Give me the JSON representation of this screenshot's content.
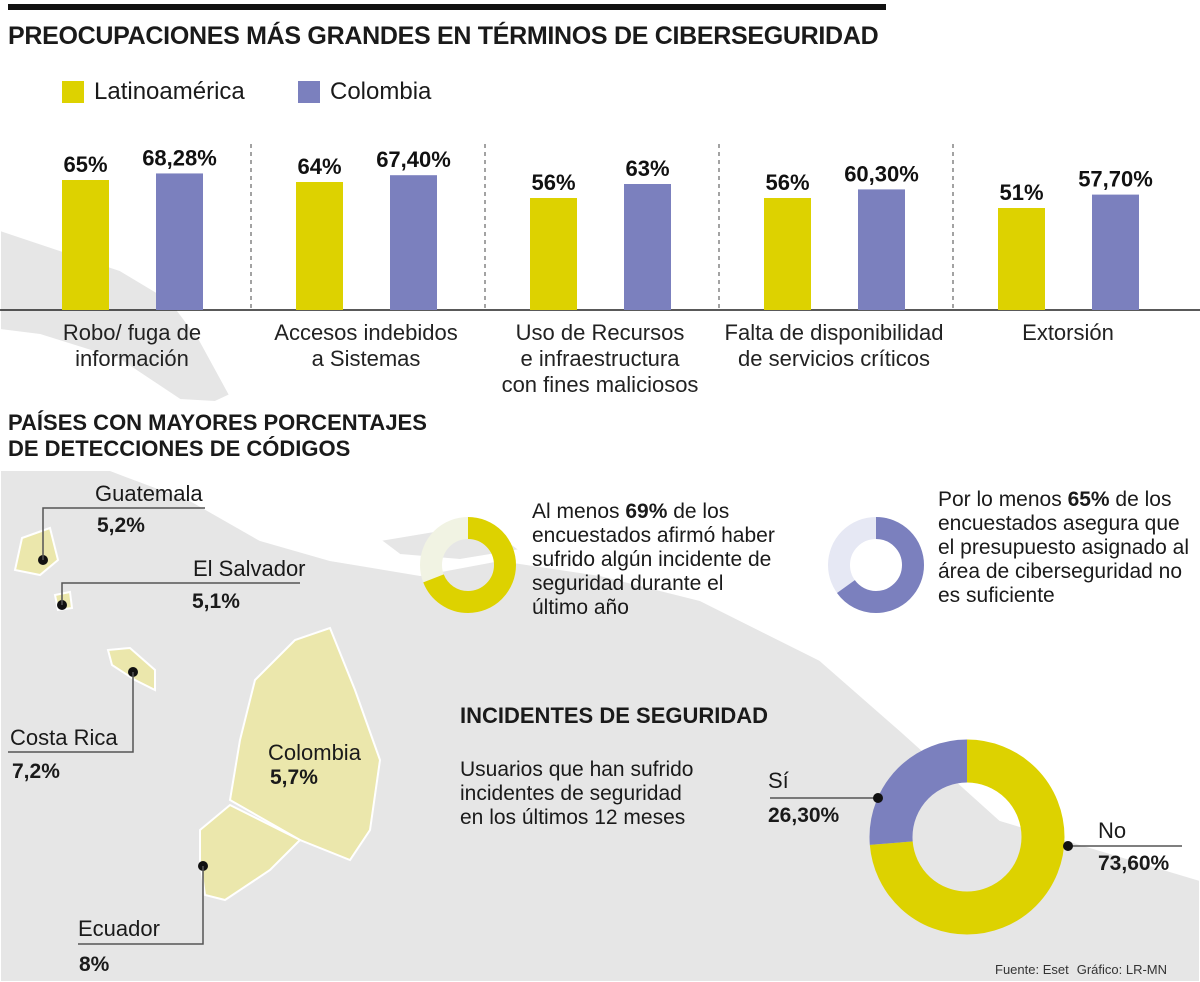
{
  "title": "PREOCUPACIONES MÁS GRANDES EN TÉRMINOS DE CIBERSEGURIDAD",
  "colors": {
    "latam": "#DDD200",
    "colombia": "#7B80BE",
    "country_fill": "#EBE7AC",
    "land": "#E6E6E6"
  },
  "chart_data": [
    {
      "type": "bar",
      "title": "PREOCUPACIONES MÁS GRANDES EN TÉRMINOS DE CIBERSEGURIDAD",
      "legend": "top-left",
      "categories": [
        [
          "Robo/ fuga de",
          "información"
        ],
        [
          "Accesos indebidos",
          "a Sistemas"
        ],
        [
          "Uso de Recursos",
          "e infraestructura",
          "con fines maliciosos"
        ],
        [
          "Falta de disponibilidad",
          "de servicios críticos"
        ],
        [
          "Extorsión"
        ]
      ],
      "series": [
        {
          "name": "Latinoamérica",
          "values": [
            65,
            64,
            56,
            56,
            51
          ],
          "labels": [
            "65%",
            "64%",
            "56%",
            "56%",
            "51%"
          ]
        },
        {
          "name": "Colombia",
          "values": [
            68.28,
            67.4,
            63,
            60.3,
            57.7
          ],
          "labels": [
            "68,28%",
            "67,40%",
            "63%",
            "60,30%",
            "57,70%"
          ]
        }
      ]
    },
    {
      "type": "pie",
      "title": "INCIDENTES DE SEGURIDAD",
      "subtitle": "Usuarios que han sufrido incidentes de seguridad en los últimos 12 meses",
      "slices": [
        {
          "label": "No",
          "value": 73.6,
          "display": "73,60%"
        },
        {
          "label": "Sí",
          "value": 26.3,
          "display": "26,30%"
        }
      ]
    }
  ],
  "countries_section": {
    "title_lines": [
      "PAÍSES CON MAYORES PORCENTAJES",
      "DE DETECCIONES DE CÓDIGOS"
    ],
    "countries": [
      {
        "name": "Guatemala",
        "value": "5,2%"
      },
      {
        "name": "El Salvador",
        "value": "5,1%"
      },
      {
        "name": "Costa Rica",
        "value": "7,2%"
      },
      {
        "name": "Colombia",
        "value": "5,7%"
      },
      {
        "name": "Ecuador",
        "value": "8%"
      }
    ]
  },
  "stats": [
    {
      "percent": 69,
      "pre": "Al menos ",
      "bold": "69%",
      "post": " de los encuestados afirmó haber sufrido algún incidente de seguridad durante el último año"
    },
    {
      "percent": 65,
      "pre": "Por lo menos ",
      "bold": "65%",
      "post": " de los encuestados asegura que el presupuesto asignado al área de ciberseguridad no es suficiente"
    }
  ],
  "source": {
    "fuente": "Fuente: Eset",
    "grafico": "Gráfico: LR-MN"
  }
}
